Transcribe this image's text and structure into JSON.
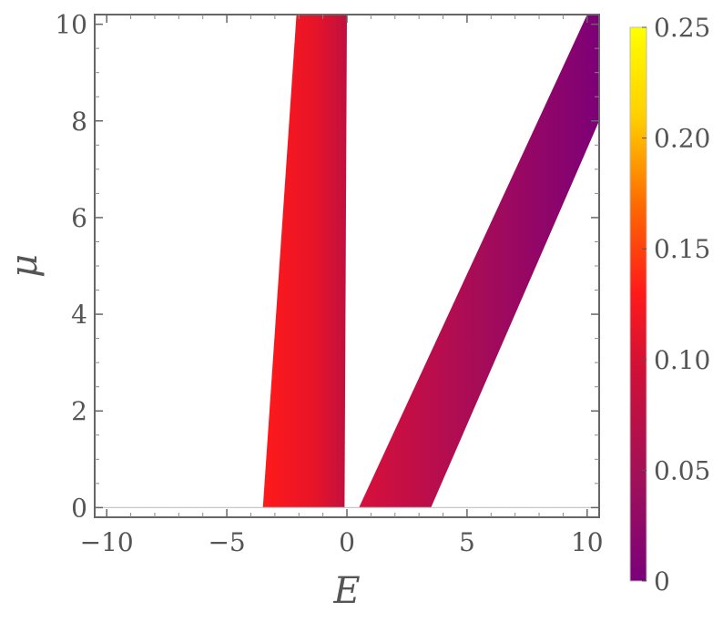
{
  "chart_data": {
    "type": "heatmap",
    "title": "",
    "xlabel": "E",
    "ylabel": "μ",
    "xlim": [
      -10.5,
      10.5
    ],
    "ylim": [
      -0.2,
      10.2
    ],
    "x_ticks": [
      "−10",
      "−5",
      "0",
      "5",
      "10"
    ],
    "x_tick_values": [
      -10,
      -5,
      0,
      5,
      10
    ],
    "y_ticks": [
      "0",
      "2",
      "4",
      "6",
      "8",
      "10"
    ],
    "y_tick_values": [
      0,
      2,
      4,
      6,
      8,
      10
    ],
    "colorbar": {
      "ticks": [
        "0",
        "0.05",
        "0.10",
        "0.15",
        "0.20",
        "0.25"
      ],
      "tick_values": [
        0,
        0.05,
        0.1,
        0.15,
        0.2,
        0.25
      ],
      "range": [
        0,
        0.25
      ],
      "colormap": [
        "#7a007a",
        "#a0105a",
        "#c8103c",
        "#ff1a1a",
        "#ff6a00",
        "#ffd000",
        "#ffff00"
      ]
    },
    "regions": [
      {
        "name": "",
        "polygon_E_mu": [
          [
            -3.5,
            0
          ],
          [
            -0.1,
            0
          ],
          [
            0.0,
            10.2
          ],
          [
            -2.1,
            10.2
          ]
        ],
        "value_low_edge": 0.11,
        "value_high_edge": 0.08
      },
      {
        "name": "",
        "polygon_E_mu": [
          [
            0.5,
            0
          ],
          [
            3.5,
            0
          ],
          [
            10.5,
            8.0
          ],
          [
            10.5,
            10.2
          ],
          [
            10.0,
            10.2
          ]
        ],
        "value_low_edge": 0.09,
        "value_high_edge": 0.02
      }
    ],
    "baseline_mu": 0,
    "grid": false
  },
  "colors": {
    "frame": "#666666",
    "text": "#555555",
    "baseline": "#c8c8c8"
  }
}
